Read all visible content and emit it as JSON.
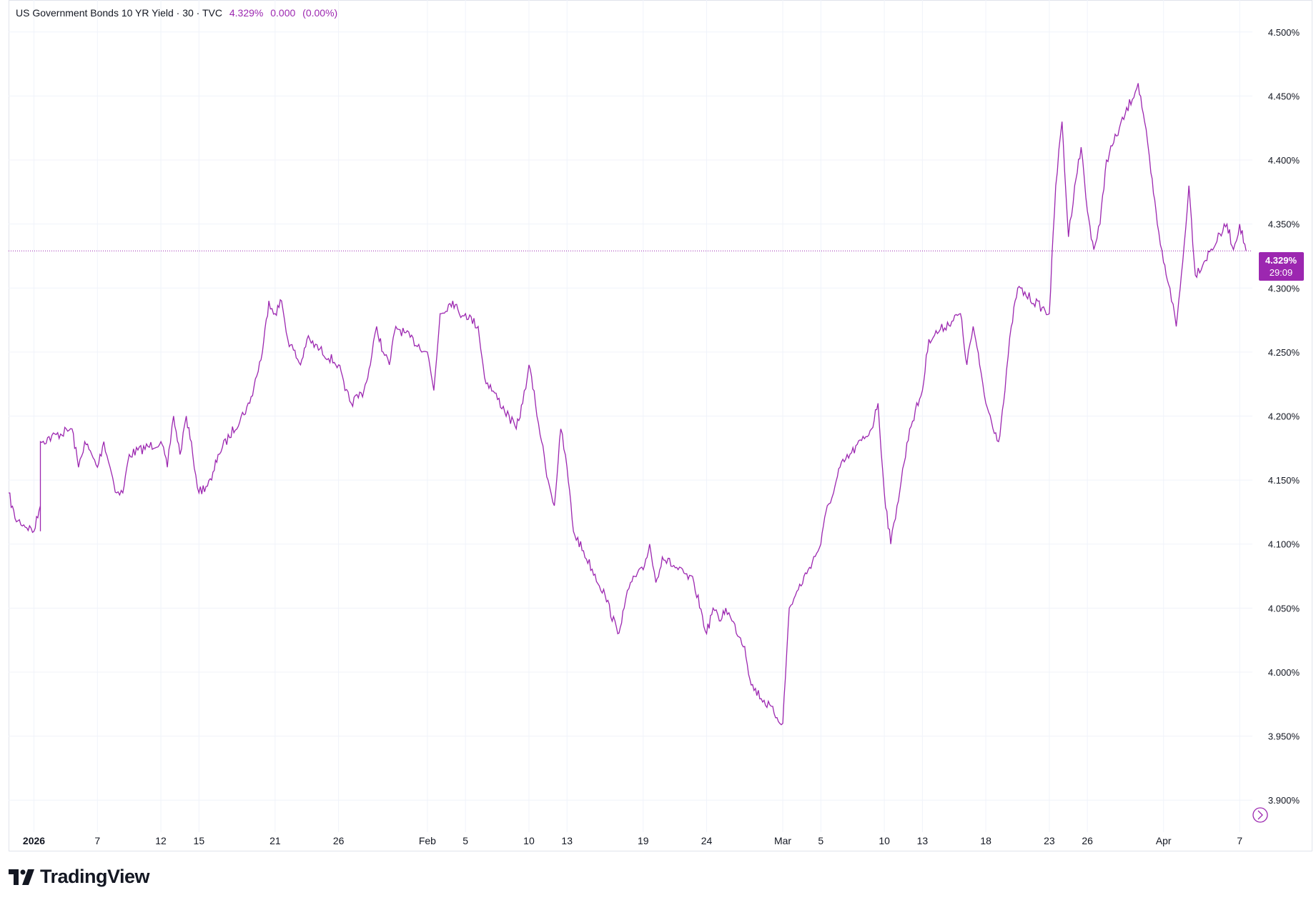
{
  "legend": {
    "title": "US Government Bonds 10 YR Yield · 30 · TVC",
    "last": "4.329%",
    "change": "0.000",
    "change_pct": "(0.00%)"
  },
  "price_tag": {
    "value": "4.329%",
    "countdown": "29:09"
  },
  "brand": {
    "name": "TradingView"
  },
  "colors": {
    "line": "#9c27b0",
    "grid": "#f0f3fa",
    "axis_text": "#131722"
  },
  "chart_data": {
    "type": "line",
    "title": "US Government Bonds 10 YR Yield · 30 · TVC",
    "xlabel": "",
    "ylabel": "",
    "ylim": [
      3.875,
      4.525
    ],
    "grid": true,
    "legend": "top-left",
    "y_ticks": [
      {
        "v": 4.5,
        "label": "4.500%"
      },
      {
        "v": 4.45,
        "label": "4.450%"
      },
      {
        "v": 4.4,
        "label": "4.400%"
      },
      {
        "v": 4.35,
        "label": "4.350%"
      },
      {
        "v": 4.3,
        "label": "4.300%"
      },
      {
        "v": 4.25,
        "label": "4.250%"
      },
      {
        "v": 4.2,
        "label": "4.200%"
      },
      {
        "v": 4.15,
        "label": "4.150%"
      },
      {
        "v": 4.1,
        "label": "4.100%"
      },
      {
        "v": 4.05,
        "label": "4.050%"
      },
      {
        "v": 4.0,
        "label": "4.000%"
      },
      {
        "v": 3.95,
        "label": "3.950%"
      },
      {
        "v": 3.9,
        "label": "3.900%"
      }
    ],
    "x_ticks": [
      {
        "date": "2026-01-02",
        "label": "2026",
        "bold": true
      },
      {
        "date": "2026-01-07",
        "label": "7"
      },
      {
        "date": "2026-01-12",
        "label": "12"
      },
      {
        "date": "2026-01-15",
        "label": "15"
      },
      {
        "date": "2026-01-21",
        "label": "21"
      },
      {
        "date": "2026-01-26",
        "label": "26"
      },
      {
        "date": "2026-02-02",
        "label": "Feb"
      },
      {
        "date": "2026-02-05",
        "label": "5"
      },
      {
        "date": "2026-02-10",
        "label": "10"
      },
      {
        "date": "2026-02-13",
        "label": "13"
      },
      {
        "date": "2026-02-19",
        "label": "19"
      },
      {
        "date": "2026-02-24",
        "label": "24"
      },
      {
        "date": "2026-03-02",
        "label": "Mar"
      },
      {
        "date": "2026-03-05",
        "label": "5"
      },
      {
        "date": "2026-03-10",
        "label": "10"
      },
      {
        "date": "2026-03-13",
        "label": "13"
      },
      {
        "date": "2026-03-18",
        "label": "18"
      },
      {
        "date": "2026-03-23",
        "label": "23"
      },
      {
        "date": "2026-03-26",
        "label": "26"
      },
      {
        "date": "2026-04-01",
        "label": "Apr"
      },
      {
        "date": "2026-04-07",
        "label": "7"
      }
    ],
    "current_value": 4.329,
    "series": [
      {
        "values": [
          [
            "2025-12-31",
            4.14
          ],
          [
            "2025-12-31",
            4.12
          ],
          [
            "2026-01-02",
            4.11
          ],
          [
            "2026-01-02",
            4.13
          ],
          [
            "2026-01-02",
            4.11
          ],
          [
            "2026-01-02",
            4.18
          ],
          [
            "2026-01-05",
            4.19
          ],
          [
            "2026-01-05",
            4.16
          ],
          [
            "2026-01-06",
            4.18
          ],
          [
            "2026-01-07",
            4.16
          ],
          [
            "2026-01-07",
            4.18
          ],
          [
            "2026-01-08",
            4.16
          ],
          [
            "2026-01-08",
            4.14
          ],
          [
            "2026-01-09",
            4.14
          ],
          [
            "2026-01-09",
            4.17
          ],
          [
            "2026-01-12",
            4.18
          ],
          [
            "2026-01-12",
            4.16
          ],
          [
            "2026-01-13",
            4.2
          ],
          [
            "2026-01-13",
            4.17
          ],
          [
            "2026-01-14",
            4.2
          ],
          [
            "2026-01-14",
            4.17
          ],
          [
            "2026-01-15",
            4.14
          ],
          [
            "2026-01-16",
            4.15
          ],
          [
            "2026-01-16",
            4.17
          ],
          [
            "2026-01-19",
            4.21
          ],
          [
            "2026-01-20",
            4.25
          ],
          [
            "2026-01-20",
            4.29
          ],
          [
            "2026-01-21",
            4.28
          ],
          [
            "2026-01-21",
            4.29
          ],
          [
            "2026-01-22",
            4.26
          ],
          [
            "2026-01-23",
            4.24
          ],
          [
            "2026-01-23",
            4.26
          ],
          [
            "2026-01-26",
            4.24
          ],
          [
            "2026-01-26",
            4.22
          ],
          [
            "2026-01-27",
            4.21
          ],
          [
            "2026-01-28",
            4.22
          ],
          [
            "2026-01-28",
            4.24
          ],
          [
            "2026-01-29",
            4.27
          ],
          [
            "2026-01-29",
            4.25
          ],
          [
            "2026-01-30",
            4.24
          ],
          [
            "2026-01-30",
            4.27
          ],
          [
            "2026-02-02",
            4.25
          ],
          [
            "2026-02-02",
            4.22
          ],
          [
            "2026-02-03",
            4.28
          ],
          [
            "2026-02-04",
            4.29
          ],
          [
            "2026-02-04",
            4.28
          ],
          [
            "2026-02-05",
            4.28
          ],
          [
            "2026-02-06",
            4.27
          ],
          [
            "2026-02-06",
            4.23
          ],
          [
            "2026-02-09",
            4.19
          ],
          [
            "2026-02-09",
            4.21
          ],
          [
            "2026-02-10",
            4.24
          ],
          [
            "2026-02-10",
            4.21
          ],
          [
            "2026-02-11",
            4.18
          ],
          [
            "2026-02-11",
            4.15
          ],
          [
            "2026-02-12",
            4.13
          ],
          [
            "2026-02-12",
            4.19
          ],
          [
            "2026-02-13",
            4.16
          ],
          [
            "2026-02-13",
            4.11
          ],
          [
            "2026-02-16",
            4.06
          ],
          [
            "2026-02-17",
            4.03
          ],
          [
            "2026-02-17",
            4.05
          ],
          [
            "2026-02-18",
            4.07
          ],
          [
            "2026-02-19",
            4.08
          ],
          [
            "2026-02-19",
            4.1
          ],
          [
            "2026-02-20",
            4.07
          ],
          [
            "2026-02-20",
            4.09
          ],
          [
            "2026-02-23",
            4.07
          ],
          [
            "2026-02-24",
            4.03
          ],
          [
            "2026-02-24",
            4.05
          ],
          [
            "2026-02-25",
            4.04
          ],
          [
            "2026-02-25",
            4.05
          ],
          [
            "2026-02-26",
            4.04
          ],
          [
            "2026-02-27",
            4.02
          ],
          [
            "2026-02-27",
            3.99
          ],
          [
            "2026-03-02",
            3.96
          ],
          [
            "2026-03-02",
            4.05
          ],
          [
            "2026-03-03",
            4.06
          ],
          [
            "2026-03-04",
            4.08
          ],
          [
            "2026-03-05",
            4.1
          ],
          [
            "2026-03-05",
            4.13
          ],
          [
            "2026-03-06",
            4.14
          ],
          [
            "2026-03-06",
            4.16
          ],
          [
            "2026-03-09",
            4.19
          ],
          [
            "2026-03-09",
            4.21
          ],
          [
            "2026-03-10",
            4.14
          ],
          [
            "2026-03-10",
            4.1
          ],
          [
            "2026-03-11",
            4.13
          ],
          [
            "2026-03-12",
            4.19
          ],
          [
            "2026-03-13",
            4.22
          ],
          [
            "2026-03-13",
            4.26
          ],
          [
            "2026-03-16",
            4.28
          ],
          [
            "2026-03-16",
            4.24
          ],
          [
            "2026-03-17",
            4.27
          ],
          [
            "2026-03-17",
            4.24
          ],
          [
            "2026-03-18",
            4.21
          ],
          [
            "2026-03-19",
            4.18
          ],
          [
            "2026-03-19",
            4.22
          ],
          [
            "2026-03-20",
            4.27
          ],
          [
            "2026-03-20",
            4.3
          ],
          [
            "2026-03-23",
            4.28
          ],
          [
            "2026-03-23",
            4.38
          ],
          [
            "2026-03-24",
            4.43
          ],
          [
            "2026-03-24",
            4.34
          ],
          [
            "2026-03-25",
            4.38
          ],
          [
            "2026-03-25",
            4.41
          ],
          [
            "2026-03-26",
            4.36
          ],
          [
            "2026-03-26",
            4.33
          ],
          [
            "2026-03-27",
            4.35
          ],
          [
            "2026-03-27",
            4.4
          ],
          [
            "2026-03-30",
            4.46
          ],
          [
            "2026-03-30",
            4.43
          ],
          [
            "2026-03-31",
            4.39
          ],
          [
            "2026-03-31",
            4.35
          ],
          [
            "2026-04-01",
            4.32
          ],
          [
            "2026-04-01",
            4.3
          ],
          [
            "2026-04-02",
            4.27
          ],
          [
            "2026-04-02",
            4.32
          ],
          [
            "2026-04-03",
            4.38
          ],
          [
            "2026-04-03",
            4.31
          ],
          [
            "2026-04-06",
            4.35
          ],
          [
            "2026-04-06",
            4.33
          ],
          [
            "2026-04-07",
            4.35
          ],
          [
            "2026-04-07",
            4.329
          ]
        ]
      }
    ]
  }
}
